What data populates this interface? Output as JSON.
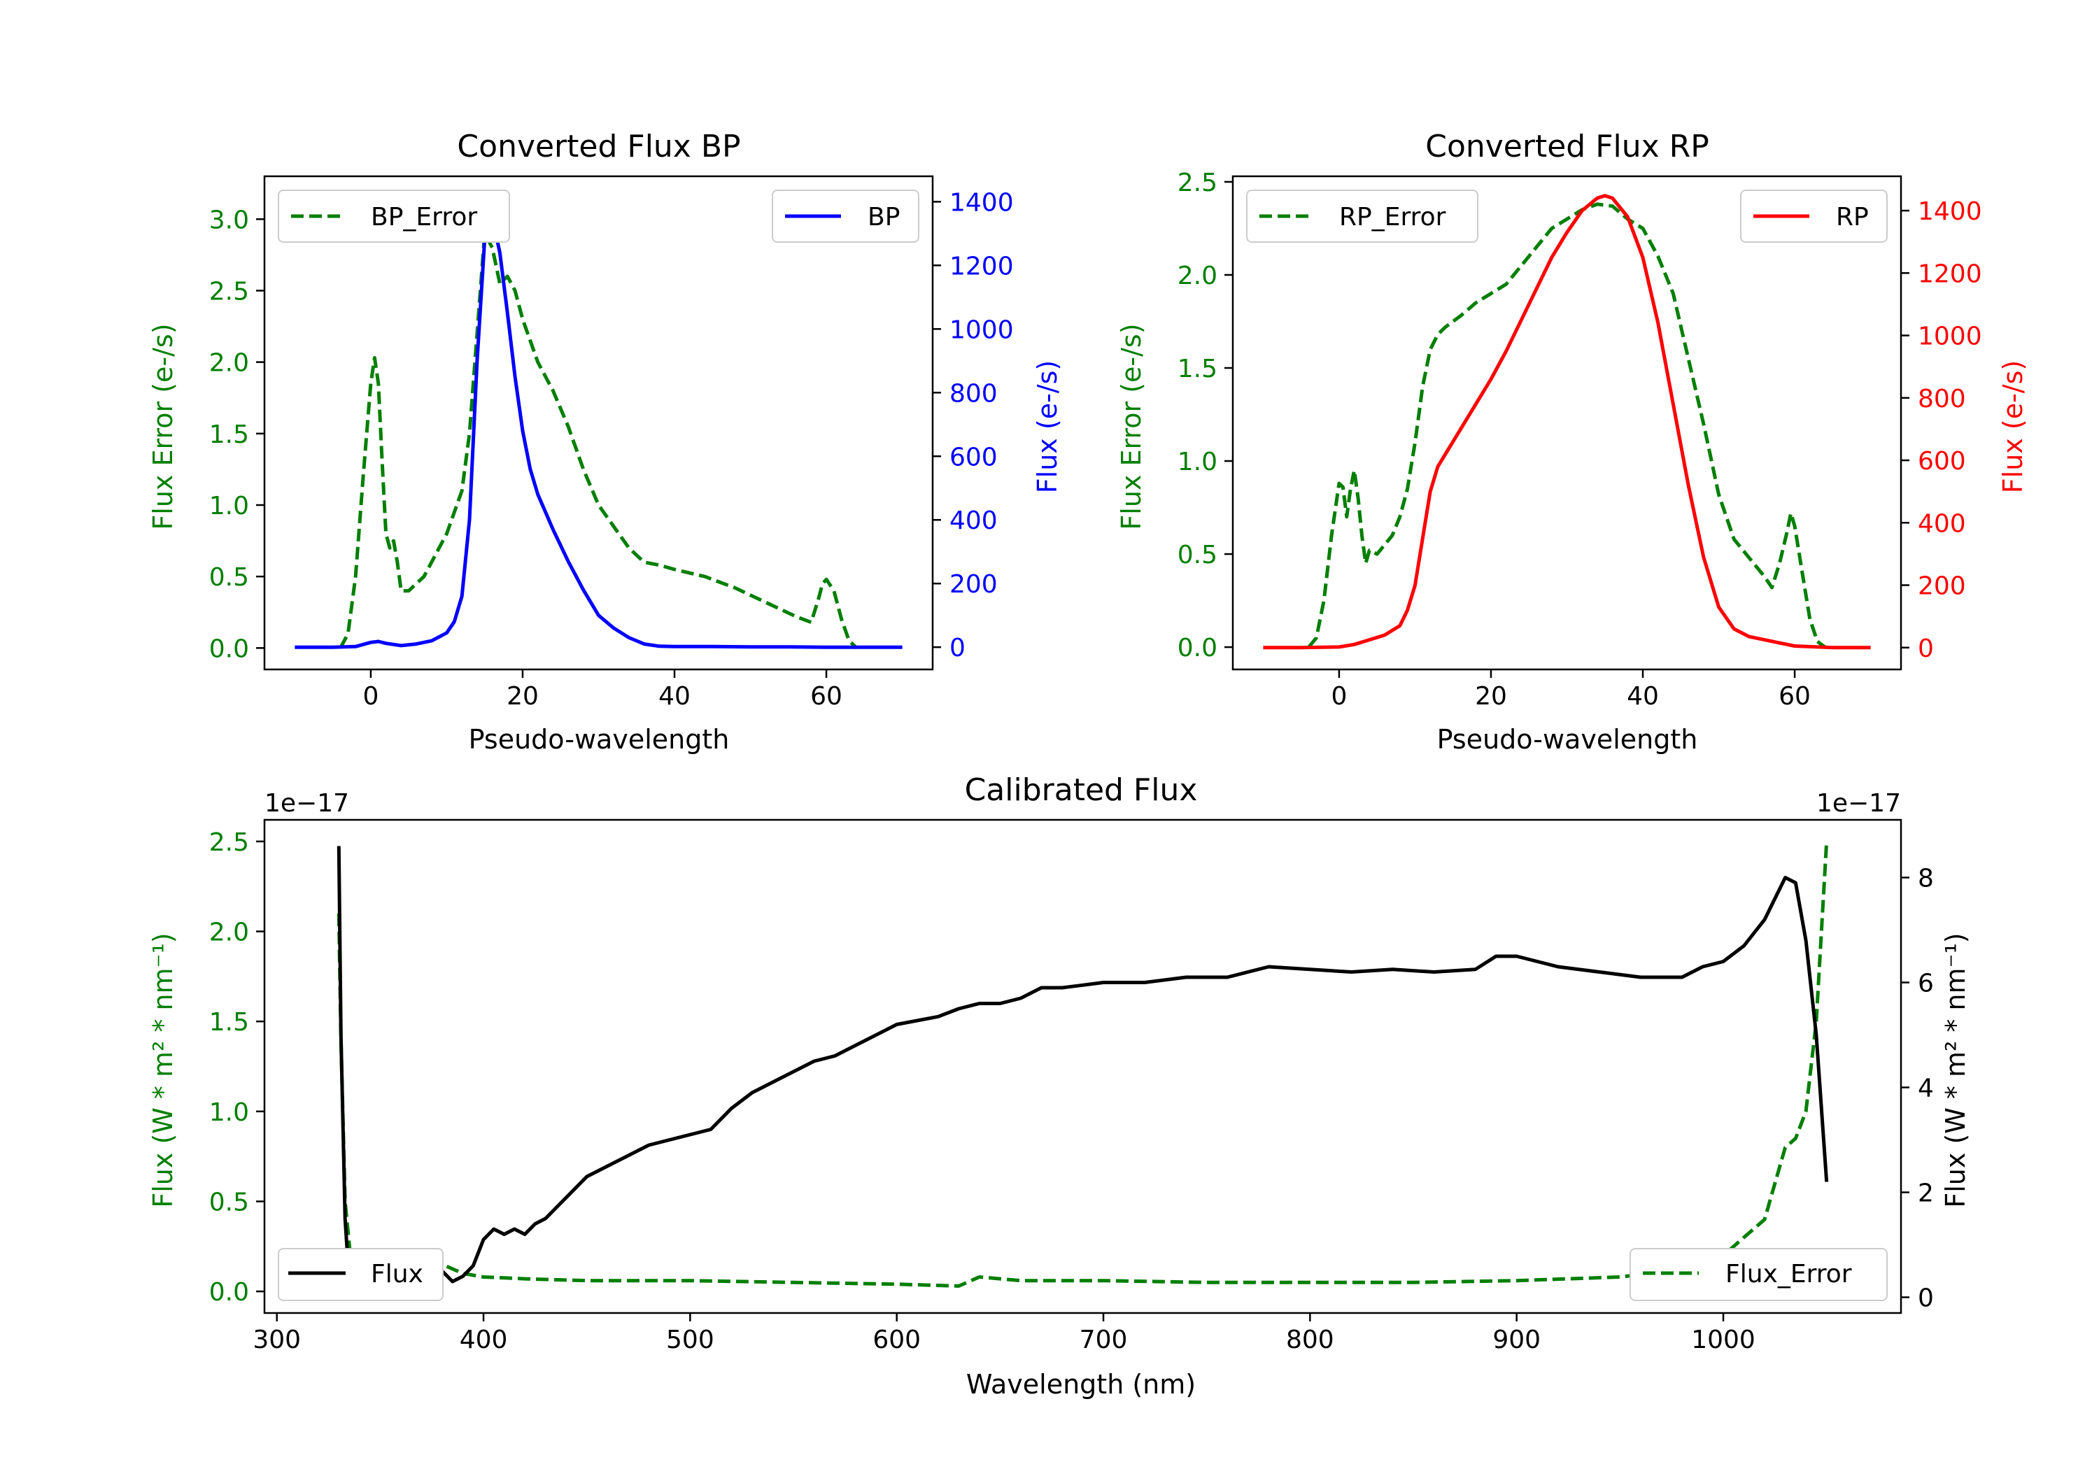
{
  "figure": {
    "colors": {
      "bp": "#0000ff",
      "rp": "#ff0000",
      "error": "#007f00",
      "flux": "#000000"
    }
  },
  "chart_data": [
    {
      "id": "bp",
      "type": "line",
      "title": "Converted Flux BP",
      "xlabel": "Pseudo-wavelength",
      "ylabel_left": "Flux Error (e-/s)",
      "ylabel_right": "Flux (e-/s)",
      "xlim": [
        -14,
        74
      ],
      "ylim_left": [
        -0.15,
        3.3
      ],
      "ylim_right": [
        -70,
        1480
      ],
      "xticks": [
        0,
        20,
        40,
        60
      ],
      "yticks_left": [
        0.0,
        0.5,
        1.0,
        1.5,
        2.0,
        2.5,
        3.0
      ],
      "yticks_right": [
        0,
        200,
        400,
        600,
        800,
        1000,
        1200,
        1400
      ],
      "legend_left": "BP_Error",
      "legend_right": "BP",
      "series": [
        {
          "name": "BP_Error",
          "axis": "left",
          "style": "dashed",
          "color": "error",
          "x": [
            -4,
            -3,
            -2,
            -1,
            0,
            0.5,
            1,
            1.5,
            2,
            2.5,
            3,
            3.5,
            4,
            5,
            6,
            7,
            8,
            9,
            10,
            11,
            12,
            13,
            14,
            15,
            16,
            17,
            18,
            19,
            20,
            22,
            24,
            26,
            28,
            30,
            32,
            34,
            36,
            38,
            40,
            44,
            48,
            52,
            56,
            58,
            59,
            59.5,
            60,
            61,
            62,
            63,
            64
          ],
          "y": [
            0.0,
            0.1,
            0.5,
            1.2,
            1.85,
            2.03,
            1.85,
            1.3,
            0.8,
            0.7,
            0.75,
            0.6,
            0.4,
            0.4,
            0.45,
            0.5,
            0.6,
            0.7,
            0.8,
            0.95,
            1.1,
            1.5,
            2.2,
            2.9,
            2.8,
            2.55,
            2.6,
            2.5,
            2.3,
            2.0,
            1.8,
            1.55,
            1.25,
            1.0,
            0.85,
            0.7,
            0.6,
            0.58,
            0.55,
            0.5,
            0.42,
            0.32,
            0.22,
            0.18,
            0.35,
            0.45,
            0.48,
            0.4,
            0.2,
            0.05,
            0.0
          ]
        },
        {
          "name": "BP",
          "axis": "right",
          "style": "solid",
          "color": "bp",
          "x": [
            -10,
            -5,
            -2,
            0,
            1,
            2,
            4,
            6,
            8,
            10,
            11,
            12,
            13,
            14,
            15,
            15.5,
            16,
            17,
            18,
            19,
            20,
            21,
            22,
            24,
            26,
            28,
            30,
            32,
            34,
            36,
            38,
            40,
            45,
            50,
            55,
            60,
            65,
            70
          ],
          "y": [
            0,
            0,
            2,
            15,
            18,
            12,
            5,
            10,
            20,
            45,
            80,
            160,
            400,
            900,
            1280,
            1380,
            1350,
            1240,
            1050,
            850,
            680,
            560,
            480,
            370,
            270,
            180,
            100,
            60,
            30,
            10,
            3,
            2,
            2,
            1,
            1,
            0,
            0,
            0
          ]
        }
      ]
    },
    {
      "id": "rp",
      "type": "line",
      "title": "Converted Flux RP",
      "xlabel": "Pseudo-wavelength",
      "ylabel_left": "Flux Error (e-/s)",
      "ylabel_right": "Flux (e-/s)",
      "xlim": [
        -14,
        74
      ],
      "ylim_left": [
        -0.12,
        2.53
      ],
      "ylim_right": [
        -70,
        1510
      ],
      "xticks": [
        0,
        20,
        40,
        60
      ],
      "yticks_left": [
        0.0,
        0.5,
        1.0,
        1.5,
        2.0,
        2.5
      ],
      "yticks_right": [
        0,
        200,
        400,
        600,
        800,
        1000,
        1200,
        1400
      ],
      "legend_left": "RP_Error",
      "legend_right": "RP",
      "series": [
        {
          "name": "RP_Error",
          "axis": "left",
          "style": "dashed",
          "color": "error",
          "x": [
            -4,
            -3,
            -2,
            -1,
            0,
            0.5,
            1,
            1.5,
            2,
            2.5,
            3,
            3.5,
            4,
            5,
            6,
            7,
            8,
            9,
            10,
            11,
            12,
            13,
            14,
            16,
            18,
            20,
            22,
            24,
            26,
            28,
            30,
            32,
            34,
            36,
            38,
            40,
            42,
            44,
            46,
            48,
            50,
            52,
            54,
            56,
            57,
            58,
            59,
            59.5,
            60,
            61,
            62,
            63,
            64
          ],
          "y": [
            0.0,
            0.05,
            0.25,
            0.6,
            0.88,
            0.86,
            0.7,
            0.85,
            0.95,
            0.8,
            0.6,
            0.45,
            0.52,
            0.5,
            0.55,
            0.6,
            0.7,
            0.85,
            1.1,
            1.4,
            1.6,
            1.68,
            1.72,
            1.78,
            1.85,
            1.9,
            1.95,
            2.05,
            2.15,
            2.25,
            2.3,
            2.35,
            2.38,
            2.37,
            2.3,
            2.25,
            2.1,
            1.9,
            1.55,
            1.2,
            0.82,
            0.58,
            0.48,
            0.38,
            0.32,
            0.45,
            0.62,
            0.72,
            0.65,
            0.4,
            0.15,
            0.03,
            0.0
          ]
        },
        {
          "name": "RP",
          "axis": "right",
          "style": "solid",
          "color": "rp",
          "x": [
            -10,
            -5,
            0,
            2,
            4,
            6,
            8,
            9,
            10,
            11,
            12,
            13,
            14,
            16,
            18,
            20,
            22,
            24,
            26,
            28,
            30,
            32,
            34,
            35,
            36,
            38,
            40,
            42,
            44,
            46,
            48,
            50,
            52,
            54,
            56,
            58,
            60,
            65,
            70
          ],
          "y": [
            0,
            0,
            2,
            10,
            25,
            40,
            70,
            120,
            200,
            350,
            500,
            580,
            620,
            700,
            780,
            860,
            950,
            1050,
            1150,
            1250,
            1330,
            1400,
            1440,
            1448,
            1440,
            1380,
            1250,
            1040,
            780,
            520,
            290,
            130,
            60,
            35,
            25,
            15,
            5,
            0,
            0
          ]
        }
      ]
    },
    {
      "id": "calibrated",
      "type": "line",
      "title": "Calibrated Flux",
      "xlabel": "Wavelength (nm)",
      "ylabel_left": "Flux (W * m² * nm⁻¹)",
      "ylabel_right": "Flux (W * m² * nm⁻¹)",
      "offset_left": "1e−17",
      "offset_right": "1e−17",
      "xlim": [
        294,
        1086
      ],
      "ylim_left": [
        -0.12,
        2.62
      ],
      "ylim_right": [
        -0.3,
        9.1
      ],
      "xticks": [
        300,
        400,
        500,
        600,
        700,
        800,
        900,
        1000
      ],
      "yticks_left": [
        0.0,
        0.5,
        1.0,
        1.5,
        2.0,
        2.5
      ],
      "yticks_right": [
        0,
        2,
        4,
        6,
        8
      ],
      "legend_left": "Flux",
      "legend_right": "Flux_Error",
      "series": [
        {
          "name": "Flux_Error",
          "axis": "left",
          "style": "dashed",
          "color": "error",
          "x": [
            330,
            331,
            333,
            336,
            340,
            350,
            360,
            370,
            380,
            390,
            400,
            420,
            450,
            500,
            550,
            600,
            630,
            640,
            660,
            700,
            750,
            800,
            850,
            900,
            950,
            980,
            1000,
            1010,
            1020,
            1025,
            1030,
            1035,
            1040,
            1045,
            1050
          ],
          "y": [
            2.1,
            1.4,
            0.5,
            0.15,
            0.1,
            0.12,
            0.08,
            0.12,
            0.15,
            0.1,
            0.08,
            0.07,
            0.06,
            0.06,
            0.05,
            0.04,
            0.03,
            0.08,
            0.06,
            0.06,
            0.05,
            0.05,
            0.05,
            0.06,
            0.08,
            0.12,
            0.2,
            0.3,
            0.4,
            0.6,
            0.8,
            0.85,
            1.0,
            1.5,
            2.5
          ]
        },
        {
          "name": "Flux",
          "axis": "right",
          "style": "solid",
          "color": "flux",
          "x": [
            330,
            331,
            333,
            335,
            340,
            345,
            350,
            355,
            360,
            365,
            370,
            375,
            380,
            385,
            390,
            395,
            400,
            405,
            410,
            415,
            420,
            425,
            430,
            440,
            450,
            460,
            470,
            480,
            490,
            500,
            510,
            520,
            530,
            540,
            550,
            560,
            570,
            580,
            590,
            600,
            620,
            630,
            640,
            650,
            660,
            670,
            680,
            690,
            700,
            710,
            720,
            740,
            760,
            780,
            800,
            820,
            840,
            860,
            880,
            890,
            900,
            920,
            940,
            960,
            980,
            990,
            1000,
            1010,
            1020,
            1030,
            1035,
            1040,
            1045,
            1050
          ],
          "y": [
            8.6,
            5.0,
            1.5,
            0.3,
            0.4,
            0.8,
            0.6,
            0.35,
            0.5,
            0.7,
            0.55,
            0.6,
            0.5,
            0.3,
            0.4,
            0.6,
            1.1,
            1.3,
            1.2,
            1.3,
            1.2,
            1.4,
            1.5,
            1.9,
            2.3,
            2.5,
            2.7,
            2.9,
            3.0,
            3.1,
            3.2,
            3.6,
            3.9,
            4.1,
            4.3,
            4.5,
            4.6,
            4.8,
            5.0,
            5.2,
            5.35,
            5.5,
            5.6,
            5.6,
            5.7,
            5.9,
            5.9,
            5.95,
            6.0,
            6.0,
            6.0,
            6.1,
            6.1,
            6.3,
            6.25,
            6.2,
            6.25,
            6.2,
            6.25,
            6.5,
            6.5,
            6.3,
            6.2,
            6.1,
            6.1,
            6.3,
            6.4,
            6.7,
            7.2,
            8.0,
            7.9,
            6.8,
            5.0,
            2.2
          ]
        }
      ]
    }
  ]
}
